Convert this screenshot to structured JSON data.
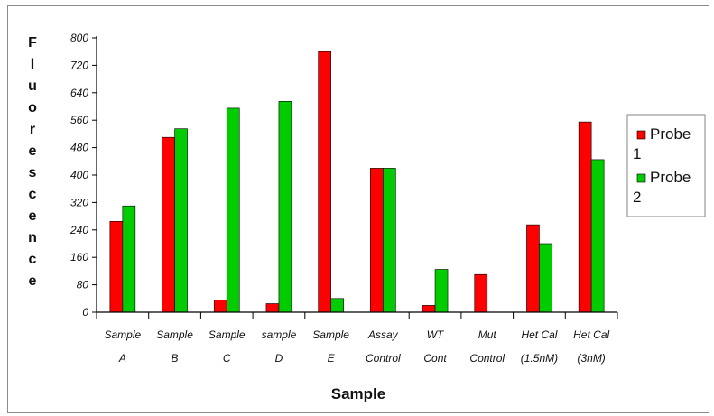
{
  "chart_data": {
    "type": "bar",
    "title": "",
    "xlabel": "Sample",
    "ylabel": "Fluorescence",
    "ylim": [
      0,
      800
    ],
    "yticks": [
      0,
      80,
      160,
      240,
      320,
      400,
      480,
      560,
      640,
      720,
      800
    ],
    "categories": [
      [
        "Sample",
        "A"
      ],
      [
        "Sample",
        "B"
      ],
      [
        "Sample",
        "C"
      ],
      [
        "sample",
        "D"
      ],
      [
        "Sample",
        "E"
      ],
      [
        "Assay",
        "Control"
      ],
      [
        "WT",
        "Cont"
      ],
      [
        "Mut",
        "Control"
      ],
      [
        "Het Cal",
        "(1.5nM)"
      ],
      [
        "Het Cal",
        "(3nM)"
      ]
    ],
    "series": [
      {
        "name": "Probe 1",
        "color": "#ff0000",
        "values": [
          265,
          510,
          35,
          25,
          760,
          420,
          20,
          110,
          255,
          555
        ]
      },
      {
        "name": "Probe 2",
        "color": "#00cc00",
        "values": [
          310,
          535,
          595,
          615,
          40,
          420,
          125,
          0,
          200,
          445
        ]
      }
    ],
    "legend": {
      "placement": "right",
      "entries": [
        [
          "Probe",
          "1"
        ],
        [
          "Probe",
          "2"
        ]
      ]
    },
    "grid": false
  }
}
